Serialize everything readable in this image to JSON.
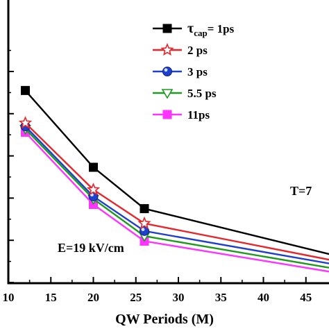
{
  "chart_data": {
    "type": "line",
    "xlabel": "QW Periods (M)",
    "ylabel": "",
    "x": [
      12,
      20,
      26,
      48
    ],
    "xlim": [
      10,
      48
    ],
    "ylim": [
      1.0,
      6.0
    ],
    "xticks": [
      10,
      15,
      20,
      25,
      30,
      35,
      40,
      45
    ],
    "grid": false,
    "legend_position": "top-right",
    "series": [
      {
        "name": "τcap= 1ps",
        "name_main": "τ",
        "name_sub": "cap",
        "name_rest": "= 1ps",
        "color": "#000000",
        "marker": "square-filled",
        "values": [
          5.55,
          3.73,
          2.75,
          1.66
        ]
      },
      {
        "name": "2 ps",
        "color": "#e8252a",
        "marker": "star-open",
        "values": [
          4.78,
          3.2,
          2.4,
          1.53
        ]
      },
      {
        "name": "3 ps",
        "color": "#1f3fcf",
        "marker": "circle-ball",
        "values": [
          4.7,
          3.04,
          2.22,
          1.44
        ]
      },
      {
        "name": "5.5 ps",
        "color": "#1e9a1e",
        "marker": "triangle-down-open",
        "values": [
          4.64,
          2.98,
          2.1,
          1.34
        ]
      },
      {
        "name": "11ps",
        "color": "#ff33ff",
        "marker": "square-filled",
        "values": [
          4.56,
          2.85,
          1.98,
          1.25
        ]
      }
    ],
    "annotations": [
      {
        "id": "field",
        "text": "E=19 kV/cm"
      },
      {
        "id": "temp",
        "text": "T=7"
      }
    ]
  }
}
